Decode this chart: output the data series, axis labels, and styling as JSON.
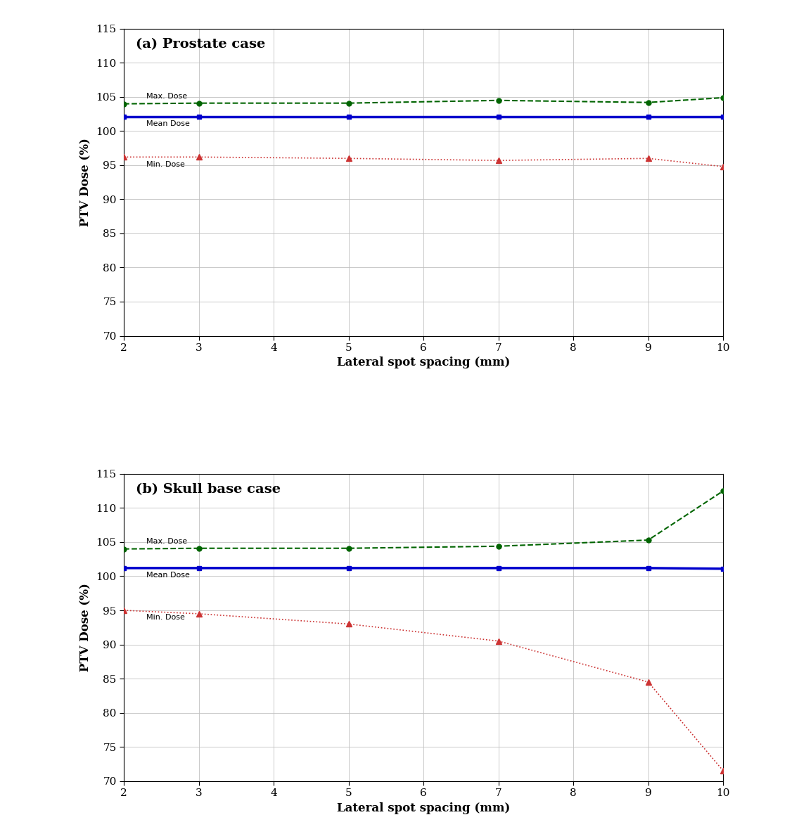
{
  "x": [
    2,
    3,
    5,
    7,
    9,
    10
  ],
  "prostate": {
    "title": "(a) Prostate case",
    "max_dose": [
      104.0,
      104.1,
      104.1,
      104.5,
      104.2,
      104.9
    ],
    "mean_dose": [
      102.1,
      102.1,
      102.1,
      102.1,
      102.1,
      102.1
    ],
    "min_dose": [
      96.2,
      96.2,
      96.0,
      95.7,
      96.0,
      94.8
    ]
  },
  "skull": {
    "title": "(b) Skull base case",
    "max_dose": [
      104.0,
      104.1,
      104.1,
      104.4,
      105.3,
      112.5
    ],
    "mean_dose": [
      101.2,
      101.2,
      101.2,
      101.2,
      101.2,
      101.1
    ],
    "min_dose": [
      95.0,
      94.5,
      93.0,
      90.5,
      84.5,
      71.5
    ]
  },
  "ylabel": "PTV Dose (%)",
  "xlabel": "Lateral spot spacing (mm)",
  "ylim": [
    70,
    115
  ],
  "yticks": [
    70,
    75,
    80,
    85,
    90,
    95,
    100,
    105,
    110,
    115
  ],
  "xticks": [
    2,
    3,
    4,
    5,
    6,
    7,
    8,
    9,
    10
  ],
  "xlim": [
    2,
    10
  ],
  "max_color": "#006400",
  "mean_color": "#0000CC",
  "min_color": "#CC3333",
  "label_max": "Max. Dose",
  "label_mean": "Mean Dose",
  "label_min": "Min. Dose",
  "background_color": "#ffffff",
  "title_fontsize": 14,
  "axis_label_fontsize": 12,
  "tick_fontsize": 11,
  "annotation_fontsize": 8
}
